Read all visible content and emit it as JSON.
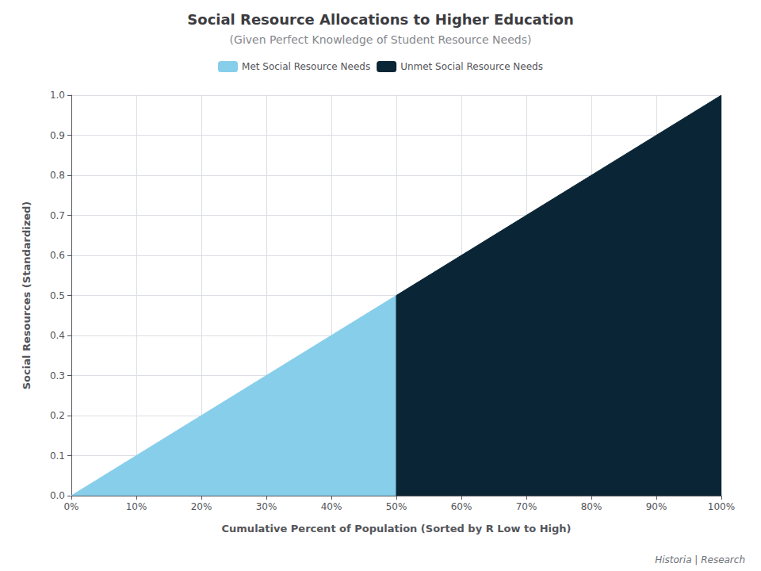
{
  "chart_data": {
    "type": "area",
    "title": "Social Resource Allocations to Higher Education",
    "subtitle": "(Given Perfect Knowledge of Student Resource Needs)",
    "xlabel": "Cumulative Percent of Population (Sorted by R Low to High)",
    "ylabel": "Social Resources (Standardized)",
    "series": [
      {
        "name": "Met Social Resource Needs",
        "color": "#87CEEB",
        "x": [
          0.0,
          0.5,
          0.5
        ],
        "values": [
          0.0,
          0.0,
          0.5
        ]
      },
      {
        "name": "Unmet Social Resource Needs",
        "color": "#0A2535",
        "x": [
          0.5,
          0.5,
          1.0,
          1.0
        ],
        "values": [
          0.0,
          0.5,
          1.0,
          0.0
        ]
      }
    ],
    "xlim": [
      0.0,
      1.0
    ],
    "ylim": [
      0.0,
      1.0
    ],
    "xticks": [
      {
        "value": 0.0,
        "label": "0%"
      },
      {
        "value": 0.1,
        "label": "10%"
      },
      {
        "value": 0.2,
        "label": "20%"
      },
      {
        "value": 0.3,
        "label": "30%"
      },
      {
        "value": 0.4,
        "label": "40%"
      },
      {
        "value": 0.5,
        "label": "50%"
      },
      {
        "value": 0.6,
        "label": "60%"
      },
      {
        "value": 0.7,
        "label": "70%"
      },
      {
        "value": 0.8,
        "label": "80%"
      },
      {
        "value": 0.9,
        "label": "90%"
      },
      {
        "value": 1.0,
        "label": "100%"
      }
    ],
    "yticks": [
      {
        "value": 0.0,
        "label": "0.0"
      },
      0.1,
      0.2,
      0.3,
      0.4,
      0.5,
      0.6,
      0.7,
      0.8,
      0.9,
      {
        "value": 1.0,
        "label": "1.0"
      }
    ],
    "grid": true,
    "legend": "top",
    "annotations": [
      "Historia | Research"
    ]
  }
}
